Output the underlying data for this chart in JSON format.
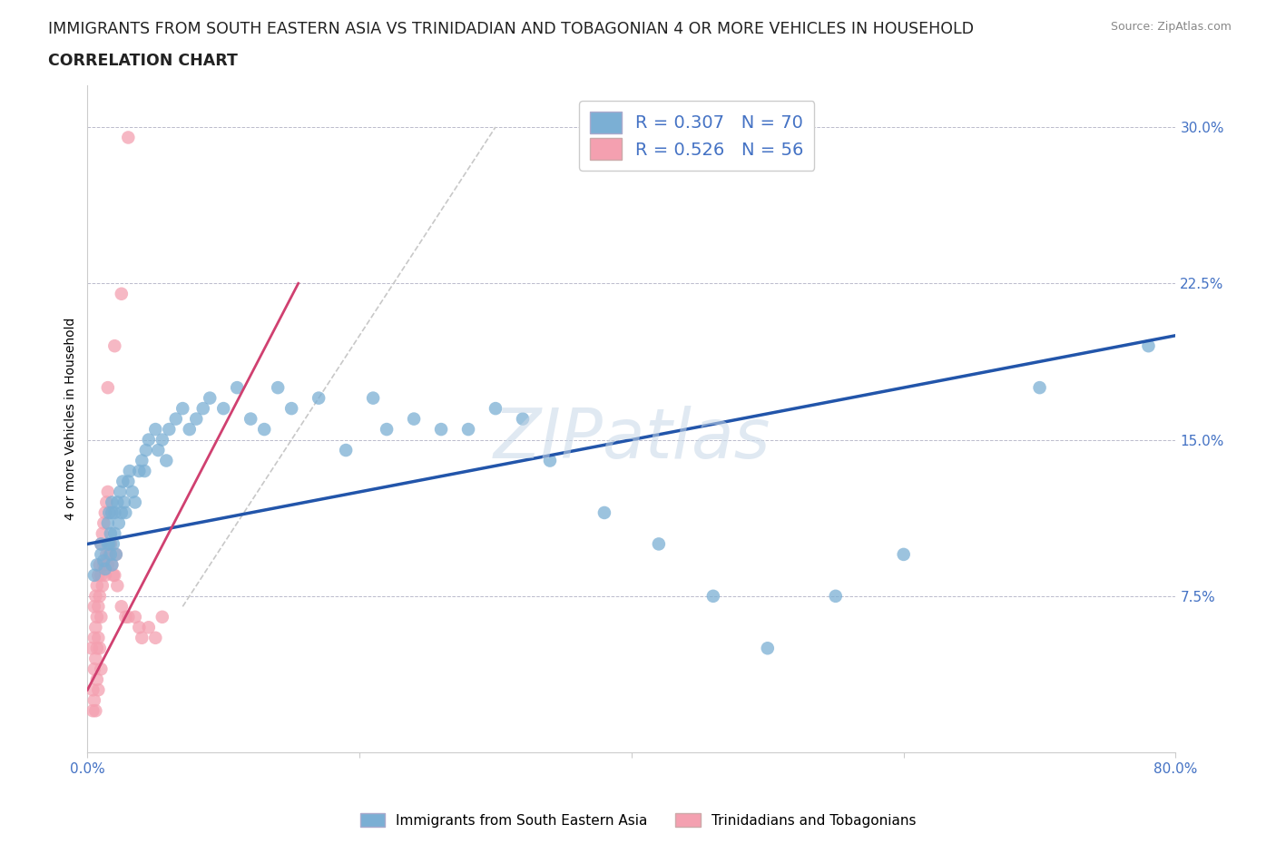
{
  "title_line1": "IMMIGRANTS FROM SOUTH EASTERN ASIA VS TRINIDADIAN AND TOBAGONIAN 4 OR MORE VEHICLES IN HOUSEHOLD",
  "title_line2": "CORRELATION CHART",
  "source": "Source: ZipAtlas.com",
  "ylabel": "4 or more Vehicles in Household",
  "xmin": 0.0,
  "xmax": 0.8,
  "ymin": 0.0,
  "ymax": 0.32,
  "blue_color": "#7BAFD4",
  "pink_color": "#F4A0B0",
  "blue_line_color": "#2255AA",
  "pink_line_color": "#D04070",
  "diag_line_color": "#C8C8C8",
  "legend_label1": "Immigrants from South Eastern Asia",
  "legend_label2": "Trinidadians and Tobagonians",
  "watermark": "ZIPatlas",
  "blue_scatter_x": [
    0.005,
    0.007,
    0.01,
    0.01,
    0.012,
    0.013,
    0.015,
    0.015,
    0.016,
    0.016,
    0.017,
    0.017,
    0.018,
    0.018,
    0.018,
    0.019,
    0.02,
    0.02,
    0.021,
    0.022,
    0.023,
    0.024,
    0.025,
    0.026,
    0.027,
    0.028,
    0.03,
    0.031,
    0.033,
    0.035,
    0.038,
    0.04,
    0.042,
    0.043,
    0.045,
    0.05,
    0.052,
    0.055,
    0.058,
    0.06,
    0.065,
    0.07,
    0.075,
    0.08,
    0.085,
    0.09,
    0.1,
    0.11,
    0.12,
    0.13,
    0.14,
    0.15,
    0.17,
    0.19,
    0.21,
    0.22,
    0.24,
    0.26,
    0.28,
    0.3,
    0.32,
    0.34,
    0.38,
    0.42,
    0.46,
    0.5,
    0.55,
    0.6,
    0.7,
    0.78
  ],
  "blue_scatter_y": [
    0.085,
    0.09,
    0.095,
    0.1,
    0.092,
    0.088,
    0.1,
    0.11,
    0.115,
    0.1,
    0.105,
    0.095,
    0.115,
    0.12,
    0.09,
    0.1,
    0.115,
    0.105,
    0.095,
    0.12,
    0.11,
    0.125,
    0.115,
    0.13,
    0.12,
    0.115,
    0.13,
    0.135,
    0.125,
    0.12,
    0.135,
    0.14,
    0.135,
    0.145,
    0.15,
    0.155,
    0.145,
    0.15,
    0.14,
    0.155,
    0.16,
    0.165,
    0.155,
    0.16,
    0.165,
    0.17,
    0.165,
    0.175,
    0.16,
    0.155,
    0.175,
    0.165,
    0.17,
    0.145,
    0.17,
    0.155,
    0.16,
    0.155,
    0.155,
    0.165,
    0.16,
    0.14,
    0.115,
    0.1,
    0.075,
    0.05,
    0.075,
    0.095,
    0.175,
    0.195
  ],
  "pink_scatter_x": [
    0.003,
    0.004,
    0.004,
    0.005,
    0.005,
    0.005,
    0.005,
    0.006,
    0.006,
    0.006,
    0.006,
    0.007,
    0.007,
    0.007,
    0.007,
    0.008,
    0.008,
    0.008,
    0.008,
    0.009,
    0.009,
    0.009,
    0.01,
    0.01,
    0.01,
    0.01,
    0.011,
    0.011,
    0.012,
    0.012,
    0.013,
    0.013,
    0.014,
    0.014,
    0.015,
    0.015,
    0.016,
    0.017,
    0.018,
    0.019,
    0.02,
    0.021,
    0.022,
    0.025,
    0.028,
    0.03,
    0.035,
    0.038,
    0.04,
    0.045,
    0.05,
    0.055,
    0.015,
    0.02,
    0.025,
    0.03
  ],
  "pink_scatter_y": [
    0.05,
    0.03,
    0.02,
    0.07,
    0.055,
    0.04,
    0.025,
    0.075,
    0.06,
    0.045,
    0.02,
    0.08,
    0.065,
    0.05,
    0.035,
    0.085,
    0.07,
    0.055,
    0.03,
    0.09,
    0.075,
    0.05,
    0.1,
    0.085,
    0.065,
    0.04,
    0.105,
    0.08,
    0.11,
    0.09,
    0.115,
    0.085,
    0.12,
    0.095,
    0.125,
    0.09,
    0.095,
    0.1,
    0.09,
    0.085,
    0.085,
    0.095,
    0.08,
    0.07,
    0.065,
    0.065,
    0.065,
    0.06,
    0.055,
    0.06,
    0.055,
    0.065,
    0.175,
    0.195,
    0.22,
    0.295
  ],
  "blue_line_x": [
    0.0,
    0.8
  ],
  "blue_line_y": [
    0.1,
    0.2
  ],
  "pink_line_x": [
    0.0,
    0.155
  ],
  "pink_line_y": [
    0.03,
    0.225
  ],
  "diag_line_x": [
    0.07,
    0.3
  ],
  "diag_line_y": [
    0.07,
    0.3
  ],
  "title_fontsize": 12.5,
  "label_fontsize": 10,
  "tick_fontsize": 11,
  "legend_fontsize": 14
}
